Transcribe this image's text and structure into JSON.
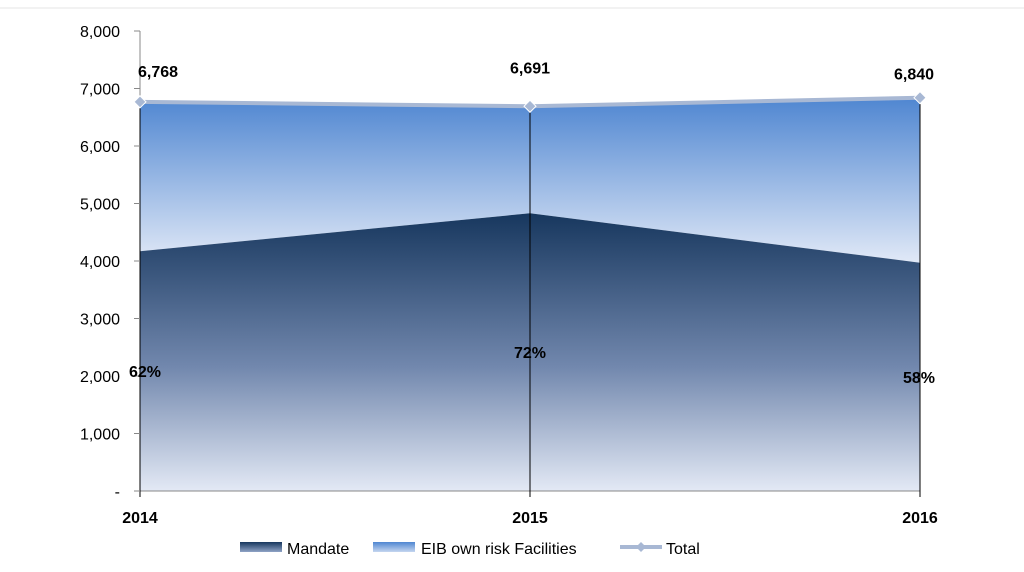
{
  "chart_data": {
    "type": "area",
    "categories": [
      "2014",
      "2015",
      "2016"
    ],
    "series": [
      {
        "name": "Mandate",
        "values": [
          4170,
          4830,
          3970
        ],
        "share_labels": [
          "62%",
          "72%",
          "58%"
        ]
      },
      {
        "name": "EIB own risk Facilities",
        "values": [
          2598,
          1861,
          2870
        ]
      },
      {
        "name": "Total",
        "values": [
          6768,
          6691,
          6840
        ],
        "value_labels": [
          "6,768",
          "6,691",
          "6,840"
        ]
      }
    ],
    "ylim": [
      0,
      8000
    ],
    "yticks": [
      0,
      1000,
      2000,
      3000,
      4000,
      5000,
      6000,
      7000,
      8000
    ],
    "ytick_labels": [
      "-",
      "1,000",
      "2,000",
      "3,000",
      "4,000",
      "5,000",
      "6,000",
      "7,000",
      "8,000"
    ],
    "legend_position": "bottom",
    "colors": {
      "mandate_top": "#17375e",
      "mandate_bottom": "#e3e9f5",
      "eib_top": "#4f86d1",
      "eib_bottom": "#e1e9f7",
      "total_line": "#a8b8d4"
    }
  }
}
